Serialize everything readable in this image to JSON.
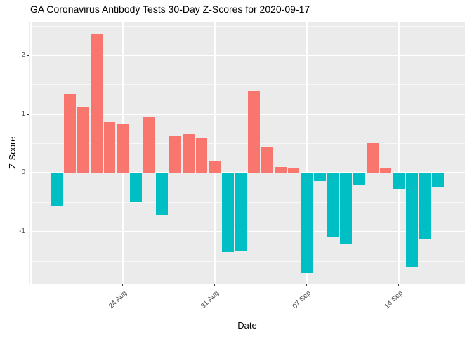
{
  "chart_data": {
    "type": "bar",
    "title": "GA Coronavirus Antibody Tests 30-Day Z-Scores for 2020-09-17",
    "xlabel": "Date",
    "ylabel": "Z Score",
    "dates": [
      "2020-08-19",
      "2020-08-20",
      "2020-08-21",
      "2020-08-22",
      "2020-08-23",
      "2020-08-24",
      "2020-08-25",
      "2020-08-26",
      "2020-08-27",
      "2020-08-28",
      "2020-08-29",
      "2020-08-30",
      "2020-08-31",
      "2020-09-01",
      "2020-09-02",
      "2020-09-03",
      "2020-09-04",
      "2020-09-05",
      "2020-09-06",
      "2020-09-07",
      "2020-09-08",
      "2020-09-09",
      "2020-09-10",
      "2020-09-11",
      "2020-09-12",
      "2020-09-13",
      "2020-09-14",
      "2020-09-15",
      "2020-09-16",
      "2020-09-17"
    ],
    "values": [
      -0.56,
      1.34,
      1.11,
      2.36,
      0.86,
      0.83,
      -0.5,
      0.96,
      -0.71,
      0.64,
      0.66,
      0.6,
      0.21,
      -1.34,
      -1.32,
      1.39,
      0.44,
      0.1,
      0.09,
      -1.7,
      -0.14,
      -1.08,
      -1.21,
      -0.21,
      0.51,
      0.09,
      -0.27,
      -1.6,
      -1.13,
      -0.25
    ],
    "positive_color": "#F8766D",
    "negative_color": "#00BFC4",
    "panel_background": "#EBEBEB",
    "gridline_color": "#FFFFFF",
    "tick_label_color": "#4D4D4D",
    "bar_width_days": 0.9,
    "legend": "none",
    "grid": "on",
    "axes": {
      "xlim_days": [
        -2.09,
        31.04
      ],
      "ylim": [
        -1.88,
        2.56
      ],
      "y_ticks": [
        {
          "z": 2,
          "label": "2"
        },
        {
          "z": 1,
          "label": "1"
        },
        {
          "z": 0,
          "label": "0"
        },
        {
          "z": -1,
          "label": "-1"
        }
      ],
      "y_minor": [
        2.5,
        1.5,
        0.5,
        -0.5,
        -1.5
      ],
      "x_ticks": [
        {
          "day": 5,
          "label": "24 Aug"
        },
        {
          "day": 12,
          "label": "31 Aug"
        },
        {
          "day": 19,
          "label": "07 Sep"
        },
        {
          "day": 26,
          "label": "14 Sep"
        }
      ],
      "x_grid_major_days": [
        -2,
        5,
        12,
        19,
        26
      ],
      "x_grid_minor_days": [
        1.5,
        8.5,
        15.5,
        22.5,
        29.5
      ]
    }
  }
}
